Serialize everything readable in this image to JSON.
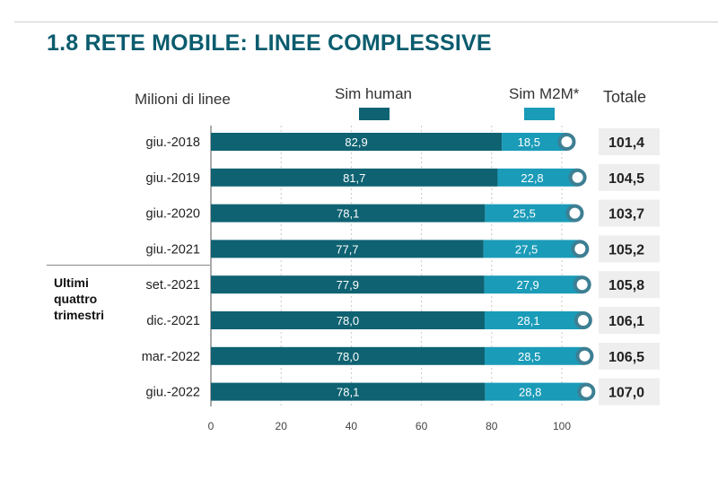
{
  "title": "1.8 RETE MOBILE: LINEE COMPLESSIVE",
  "header": {
    "unit_label": "Milioni di linee",
    "legend_human": "Sim human",
    "legend_m2m": "Sim M2M*",
    "total_label": "Totale"
  },
  "group_label": [
    "Ultimi",
    "quattro",
    "trimestri"
  ],
  "colors": {
    "human": "#0e6272",
    "m2m": "#1a9bb8",
    "marker": "#3d7f93",
    "total_bg": "#eeeeee",
    "title": "#0b5c6e"
  },
  "chart_data": {
    "type": "bar",
    "orientation": "horizontal",
    "stacked": true,
    "title": "1.8 RETE MOBILE: LINEE COMPLESSIVE",
    "ylabel": "Milioni di linee",
    "categories": [
      "giu.-2018",
      "giu.-2019",
      "giu.-2020",
      "giu.-2021",
      "set.-2021",
      "dic.-2021",
      "mar.-2022",
      "giu.-2022"
    ],
    "series": [
      {
        "name": "Sim human",
        "values": [
          82.9,
          81.7,
          78.1,
          77.7,
          77.9,
          78.0,
          78.0,
          78.1
        ],
        "labels": [
          "82,9",
          "81,7",
          "78,1",
          "77,7",
          "77,9",
          "78,0",
          "78,0",
          "78,1"
        ]
      },
      {
        "name": "Sim M2M*",
        "values": [
          18.5,
          22.8,
          25.5,
          27.5,
          27.9,
          28.1,
          28.5,
          28.8
        ],
        "labels": [
          "18,5",
          "22,8",
          "25,5",
          "27,5",
          "27,9",
          "28,1",
          "28,5",
          "28,8"
        ]
      }
    ],
    "totals": {
      "name": "Totale",
      "values": [
        101.4,
        104.5,
        103.7,
        105.2,
        105.8,
        106.1,
        106.5,
        107.0
      ],
      "labels": [
        "101,4",
        "104,5",
        "103,7",
        "105,2",
        "105,8",
        "106,1",
        "106,5",
        "107,0"
      ]
    },
    "xlim": [
      0,
      100
    ],
    "xticks": [
      0,
      20,
      40,
      60,
      80,
      100
    ],
    "grid": true,
    "legend": "top"
  }
}
